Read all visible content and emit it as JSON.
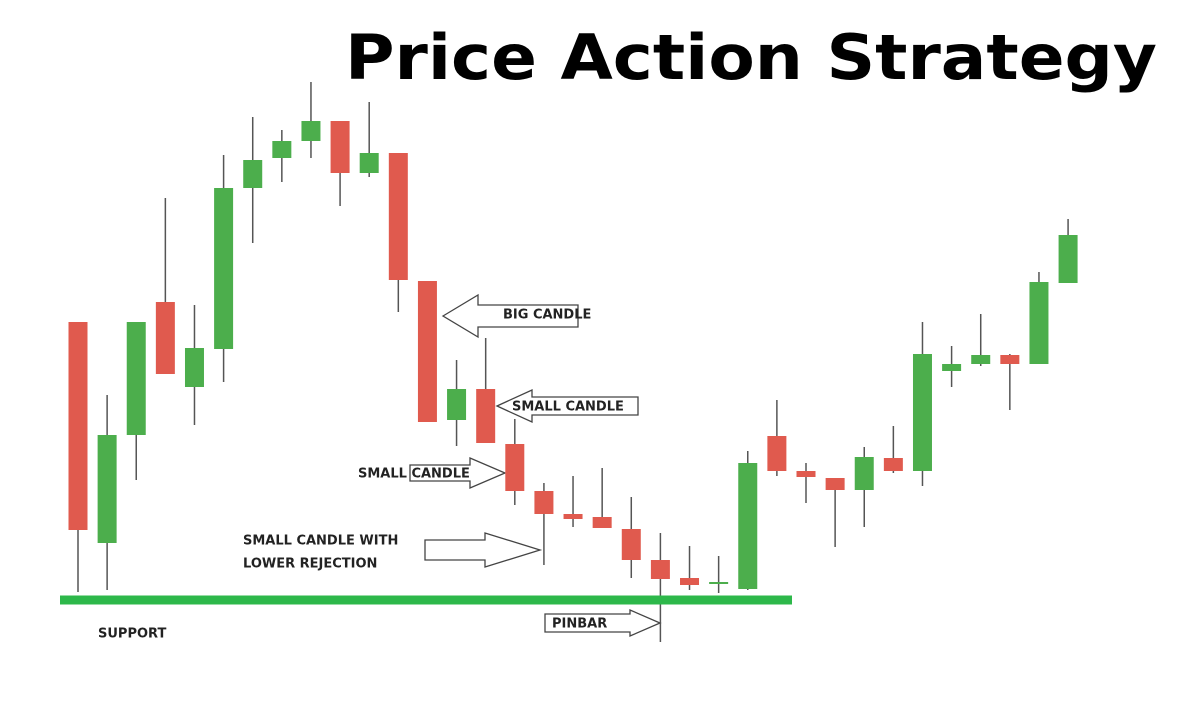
{
  "chart_data": {
    "type": "candlestick",
    "title": "Price Action Strategy",
    "ylim": [
      0,
      720
    ],
    "up_color": "#4cae4c",
    "down_color": "#e05a4e",
    "support_color": "#2db84a",
    "support_level": 120,
    "support_label": "SUPPORT",
    "open": [
      398,
      177,
      285,
      418,
      333,
      371,
      532,
      562,
      579,
      599,
      547,
      567,
      439,
      300,
      331,
      276,
      229,
      206,
      203,
      191,
      160,
      142,
      136,
      131,
      284,
      249,
      242,
      230,
      262,
      249,
      349,
      356,
      365,
      356,
      437
    ],
    "high": [
      398,
      325,
      398,
      522,
      415,
      565,
      603,
      590,
      638,
      599,
      618,
      567,
      439,
      360,
      382,
      301,
      237,
      244,
      252,
      223,
      187,
      174,
      164,
      269,
      320,
      257,
      242,
      273,
      294,
      398,
      374,
      406,
      366,
      448,
      501
    ],
    "low": [
      128,
      130,
      240,
      346,
      295,
      338,
      477,
      538,
      562,
      514,
      543,
      408,
      298,
      274,
      277,
      215,
      155,
      193,
      192,
      142,
      78,
      130,
      127,
      130,
      244,
      217,
      173,
      193,
      247,
      234,
      333,
      354,
      310,
      356,
      437
    ],
    "close": [
      190,
      285,
      398,
      346,
      372,
      532,
      560,
      579,
      599,
      547,
      567,
      440,
      298,
      331,
      277,
      229,
      206,
      201,
      192,
      160,
      141,
      135,
      138,
      257,
      249,
      243,
      230,
      263,
      249,
      366,
      356,
      365,
      356,
      438,
      485
    ],
    "annotations": [
      {
        "lines": [
          "BIG CANDLE"
        ]
      },
      {
        "lines": [
          "SMALL CANDLE"
        ]
      },
      {
        "lines": [
          "SMALL CANDLE"
        ]
      },
      {
        "lines": [
          "SMALL CANDLE WITH",
          "LOWER REJECTION"
        ]
      },
      {
        "lines": [
          "PINBAR"
        ]
      }
    ]
  }
}
